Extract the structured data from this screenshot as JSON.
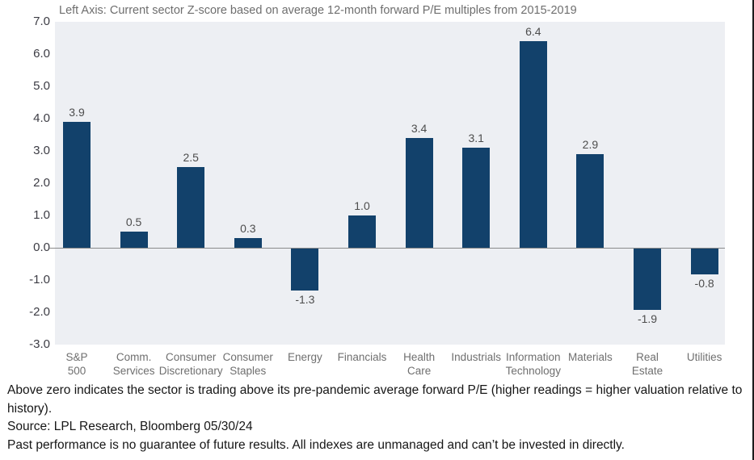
{
  "chart": {
    "title": "Left Axis: Current sector Z-score based on average 12-month forward P/E multiples from 2015-2019"
  },
  "chart_data": {
    "type": "bar",
    "title": "Left Axis: Current sector Z-score based on average 12-month forward P/E multiples from 2015-2019",
    "categories": [
      "S&P 500",
      "Comm. Services",
      "Consumer Discretionary",
      "Consumer Staples",
      "Energy",
      "Financials",
      "Health Care",
      "Industrials",
      "Information Technology",
      "Materials",
      "Real Estate",
      "Utilities"
    ],
    "values": [
      3.9,
      0.5,
      2.5,
      0.3,
      -1.3,
      1.0,
      3.4,
      3.1,
      6.4,
      2.9,
      -1.9,
      -0.8
    ],
    "value_labels": [
      "3.9",
      "0.5",
      "2.5",
      "0.3",
      "-1.3",
      "1.0",
      "3.4",
      "3.1",
      "6.4",
      "2.9",
      "-1.9",
      "-0.8"
    ],
    "xlabel": "",
    "ylabel": "",
    "ylim": [
      -3.0,
      7.0
    ],
    "ytick_labels": [
      "7.0",
      "6.0",
      "5.0",
      "4.0",
      "3.0",
      "2.0",
      "1.0",
      "0.0",
      "-1.0",
      "-2.0",
      "-3.0"
    ],
    "grid": false,
    "legend": null,
    "bar_color": "#12416b",
    "plot_bg_color": "#edeff3",
    "zero_line_color": "#8a8a8a"
  },
  "footnotes": {
    "line1": "Above zero indicates the sector is trading above its pre-pandemic average forward P/E (higher readings = higher valuation relative to history).",
    "line2": "Source: LPL Research, Bloomberg 05/30/24",
    "line3": "Past performance is no guarantee of future results. All indexes are unmanaged and can’t be invested in directly."
  }
}
